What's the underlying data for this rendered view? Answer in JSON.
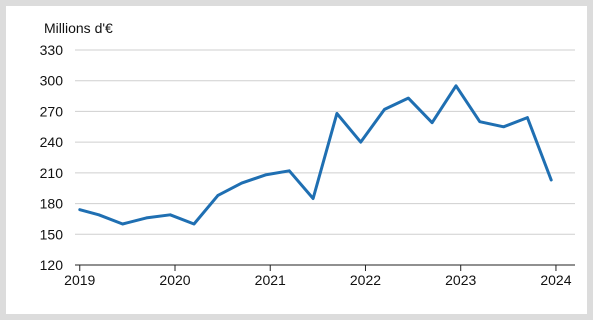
{
  "chart_data": {
    "type": "line",
    "ylabel": "Millions d'€",
    "ylim": [
      120,
      330
    ],
    "yticks": [
      120,
      150,
      180,
      210,
      240,
      270,
      300,
      330
    ],
    "xticks": [
      "2019",
      "2020",
      "2021",
      "2022",
      "2023",
      "2024"
    ],
    "xlim": [
      2018.95,
      2024.2
    ],
    "grid": true,
    "series": [
      {
        "color": "#1f6fb2",
        "x": [
          2019.0,
          2019.2,
          2019.45,
          2019.7,
          2019.95,
          2020.2,
          2020.45,
          2020.7,
          2020.95,
          2021.2,
          2021.45,
          2021.7,
          2021.95,
          2022.2,
          2022.45,
          2022.7,
          2022.95,
          2023.2,
          2023.45,
          2023.7,
          2023.95
        ],
        "values": [
          174,
          169,
          160,
          166,
          169,
          160,
          188,
          200,
          208,
          212,
          185,
          268,
          240,
          272,
          283,
          259,
          295,
          260,
          255,
          264,
          203
        ]
      }
    ]
  }
}
